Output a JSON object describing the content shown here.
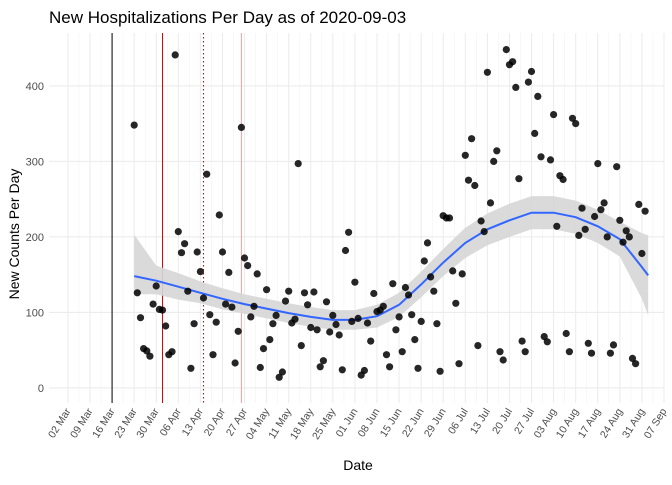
{
  "chart_data": {
    "type": "scatter",
    "title": "New Hospitalizations Per Day as of 2020-09-03",
    "xlabel": "Date",
    "ylabel": "New Counts Per Day",
    "grid": true,
    "legend": "none",
    "start_date": "2020-03-02",
    "xlim": [
      "2020-02-25",
      "2020-09-07"
    ],
    "ylim": [
      -20,
      470
    ],
    "x_ticks": [
      "02 Mar",
      "09 Mar",
      "16 Mar",
      "23 Mar",
      "30 Mar",
      "06 Apr",
      "13 Apr",
      "20 Apr",
      "27 Apr",
      "04 May",
      "11 May",
      "18 May",
      "25 May",
      "01 Jun",
      "08 Jun",
      "15 Jun",
      "22 Jun",
      "29 Jun",
      "06 Jul",
      "13 Jul",
      "20 Jul",
      "27 Jul",
      "03 Aug",
      "10 Aug",
      "17 Aug",
      "24 Aug",
      "31 Aug",
      "07 Sep"
    ],
    "y_ticks": [
      0,
      100,
      200,
      300,
      400
    ],
    "vlines": [
      {
        "date": "2020-03-16",
        "color": "#000000",
        "style": "solid"
      },
      {
        "date": "2020-04-01",
        "color": "#cc0000",
        "style": "solid"
      },
      {
        "date": "2020-04-14",
        "color": "#cc0000",
        "style": "dotted"
      },
      {
        "date": "2020-04-26",
        "color": "#e8a0a0",
        "style": "solid"
      }
    ],
    "points": [
      [
        "2020-03-23",
        348
      ],
      [
        "2020-03-24",
        126
      ],
      [
        "2020-03-25",
        93
      ],
      [
        "2020-03-26",
        52
      ],
      [
        "2020-03-27",
        49
      ],
      [
        "2020-03-28",
        42
      ],
      [
        "2020-03-29",
        111
      ],
      [
        "2020-03-30",
        135
      ],
      [
        "2020-03-31",
        104
      ],
      [
        "2020-04-01",
        103
      ],
      [
        "2020-04-02",
        82
      ],
      [
        "2020-04-03",
        44
      ],
      [
        "2020-04-04",
        48
      ],
      [
        "2020-04-05",
        441
      ],
      [
        "2020-04-06",
        207
      ],
      [
        "2020-04-07",
        179
      ],
      [
        "2020-04-08",
        191
      ],
      [
        "2020-04-09",
        128
      ],
      [
        "2020-04-10",
        26
      ],
      [
        "2020-04-11",
        85
      ],
      [
        "2020-04-12",
        180
      ],
      [
        "2020-04-13",
        154
      ],
      [
        "2020-04-14",
        119
      ],
      [
        "2020-04-15",
        283
      ],
      [
        "2020-04-16",
        97
      ],
      [
        "2020-04-17",
        44
      ],
      [
        "2020-04-18",
        87
      ],
      [
        "2020-04-19",
        229
      ],
      [
        "2020-04-20",
        180
      ],
      [
        "2020-04-21",
        111
      ],
      [
        "2020-04-22",
        153
      ],
      [
        "2020-04-23",
        107
      ],
      [
        "2020-04-24",
        33
      ],
      [
        "2020-04-25",
        75
      ],
      [
        "2020-04-26",
        345
      ],
      [
        "2020-04-27",
        172
      ],
      [
        "2020-04-28",
        162
      ],
      [
        "2020-04-29",
        94
      ],
      [
        "2020-04-30",
        108
      ],
      [
        "2020-05-01",
        151
      ],
      [
        "2020-05-02",
        27
      ],
      [
        "2020-05-03",
        52
      ],
      [
        "2020-05-04",
        130
      ],
      [
        "2020-05-05",
        64
      ],
      [
        "2020-05-06",
        85
      ],
      [
        "2020-05-07",
        96
      ],
      [
        "2020-05-08",
        14
      ],
      [
        "2020-05-09",
        21
      ],
      [
        "2020-05-10",
        115
      ],
      [
        "2020-05-11",
        128
      ],
      [
        "2020-05-12",
        86
      ],
      [
        "2020-05-13",
        91
      ],
      [
        "2020-05-14",
        297
      ],
      [
        "2020-05-15",
        56
      ],
      [
        "2020-05-16",
        126
      ],
      [
        "2020-05-17",
        110
      ],
      [
        "2020-05-18",
        80
      ],
      [
        "2020-05-19",
        127
      ],
      [
        "2020-05-20",
        77
      ],
      [
        "2020-05-21",
        28
      ],
      [
        "2020-05-22",
        36
      ],
      [
        "2020-05-23",
        114
      ],
      [
        "2020-05-24",
        74
      ],
      [
        "2020-05-25",
        96
      ],
      [
        "2020-05-26",
        84
      ],
      [
        "2020-05-27",
        70
      ],
      [
        "2020-05-28",
        24
      ],
      [
        "2020-05-29",
        182
      ],
      [
        "2020-05-30",
        206
      ],
      [
        "2020-05-31",
        88
      ],
      [
        "2020-06-01",
        140
      ],
      [
        "2020-06-02",
        92
      ],
      [
        "2020-06-03",
        17
      ],
      [
        "2020-06-04",
        23
      ],
      [
        "2020-06-05",
        86
      ],
      [
        "2020-06-06",
        62
      ],
      [
        "2020-06-07",
        125
      ],
      [
        "2020-06-08",
        101
      ],
      [
        "2020-06-09",
        103
      ],
      [
        "2020-06-10",
        108
      ],
      [
        "2020-06-11",
        44
      ],
      [
        "2020-06-12",
        28
      ],
      [
        "2020-06-13",
        138
      ],
      [
        "2020-06-14",
        77
      ],
      [
        "2020-06-15",
        94
      ],
      [
        "2020-06-16",
        48
      ],
      [
        "2020-06-17",
        133
      ],
      [
        "2020-06-18",
        123
      ],
      [
        "2020-06-19",
        97
      ],
      [
        "2020-06-20",
        64
      ],
      [
        "2020-06-21",
        26
      ],
      [
        "2020-06-22",
        88
      ],
      [
        "2020-06-23",
        168
      ],
      [
        "2020-06-24",
        192
      ],
      [
        "2020-06-25",
        147
      ],
      [
        "2020-06-26",
        128
      ],
      [
        "2020-06-27",
        85
      ],
      [
        "2020-06-28",
        22
      ],
      [
        "2020-06-29",
        228
      ],
      [
        "2020-06-30",
        225
      ],
      [
        "2020-07-01",
        225
      ],
      [
        "2020-07-02",
        155
      ],
      [
        "2020-07-03",
        112
      ],
      [
        "2020-07-04",
        32
      ],
      [
        "2020-07-05",
        151
      ],
      [
        "2020-07-06",
        308
      ],
      [
        "2020-07-07",
        275
      ],
      [
        "2020-07-08",
        330
      ],
      [
        "2020-07-09",
        268
      ],
      [
        "2020-07-10",
        56
      ],
      [
        "2020-07-11",
        221
      ],
      [
        "2020-07-12",
        207
      ],
      [
        "2020-07-13",
        418
      ],
      [
        "2020-07-14",
        245
      ],
      [
        "2020-07-15",
        300
      ],
      [
        "2020-07-16",
        314
      ],
      [
        "2020-07-17",
        48
      ],
      [
        "2020-07-18",
        37
      ],
      [
        "2020-07-19",
        448
      ],
      [
        "2020-07-20",
        428
      ],
      [
        "2020-07-21",
        432
      ],
      [
        "2020-07-22",
        398
      ],
      [
        "2020-07-23",
        277
      ],
      [
        "2020-07-24",
        62
      ],
      [
        "2020-07-25",
        48
      ],
      [
        "2020-07-26",
        405
      ],
      [
        "2020-07-27",
        419
      ],
      [
        "2020-07-28",
        337
      ],
      [
        "2020-07-29",
        386
      ],
      [
        "2020-07-30",
        306
      ],
      [
        "2020-07-31",
        68
      ],
      [
        "2020-08-01",
        61
      ],
      [
        "2020-08-02",
        302
      ],
      [
        "2020-08-03",
        362
      ],
      [
        "2020-08-04",
        214
      ],
      [
        "2020-08-05",
        281
      ],
      [
        "2020-08-06",
        276
      ],
      [
        "2020-08-07",
        72
      ],
      [
        "2020-08-08",
        48
      ],
      [
        "2020-08-09",
        357
      ],
      [
        "2020-08-10",
        350
      ],
      [
        "2020-08-11",
        202
      ],
      [
        "2020-08-12",
        238
      ],
      [
        "2020-08-13",
        210
      ],
      [
        "2020-08-14",
        59
      ],
      [
        "2020-08-15",
        46
      ],
      [
        "2020-08-16",
        227
      ],
      [
        "2020-08-17",
        297
      ],
      [
        "2020-08-18",
        236
      ],
      [
        "2020-08-19",
        245
      ],
      [
        "2020-08-20",
        200
      ],
      [
        "2020-08-21",
        46
      ],
      [
        "2020-08-22",
        57
      ],
      [
        "2020-08-23",
        293
      ],
      [
        "2020-08-24",
        222
      ],
      [
        "2020-08-25",
        193
      ],
      [
        "2020-08-26",
        208
      ],
      [
        "2020-08-27",
        200
      ],
      [
        "2020-08-28",
        39
      ],
      [
        "2020-08-29",
        32
      ],
      [
        "2020-08-30",
        243
      ],
      [
        "2020-08-31",
        178
      ],
      [
        "2020-09-01",
        234
      ]
    ],
    "smooth": {
      "color": "#3366ff",
      "band_color": "#d6d6d6",
      "points": [
        [
          "2020-03-23",
          148,
          124,
          203
        ],
        [
          "2020-03-30",
          142,
          124,
          162
        ],
        [
          "2020-04-06",
          134,
          117,
          152
        ],
        [
          "2020-04-13",
          126,
          112,
          141
        ],
        [
          "2020-04-20",
          118,
          104,
          132
        ],
        [
          "2020-04-27",
          111,
          98,
          124
        ],
        [
          "2020-05-04",
          105,
          92,
          118
        ],
        [
          "2020-05-11",
          99,
          86,
          112
        ],
        [
          "2020-05-18",
          94,
          81,
          107
        ],
        [
          "2020-05-25",
          90,
          77,
          103
        ],
        [
          "2020-06-01",
          90,
          77,
          103
        ],
        [
          "2020-06-08",
          95,
          80,
          110
        ],
        [
          "2020-06-15",
          110,
          94,
          126
        ],
        [
          "2020-06-22",
          137,
          120,
          154
        ],
        [
          "2020-06-29",
          166,
          148,
          184
        ],
        [
          "2020-07-06",
          192,
          172,
          212
        ],
        [
          "2020-07-13",
          210,
          189,
          231
        ],
        [
          "2020-07-20",
          222,
          200,
          244
        ],
        [
          "2020-07-27",
          232,
          210,
          254
        ],
        [
          "2020-08-03",
          232,
          210,
          254
        ],
        [
          "2020-08-10",
          226,
          204,
          248
        ],
        [
          "2020-08-17",
          214,
          192,
          236
        ],
        [
          "2020-08-24",
          197,
          174,
          220
        ],
        [
          "2020-08-31",
          160,
          118,
          205
        ],
        [
          "2020-09-02",
          149,
          96,
          202
        ]
      ]
    }
  }
}
